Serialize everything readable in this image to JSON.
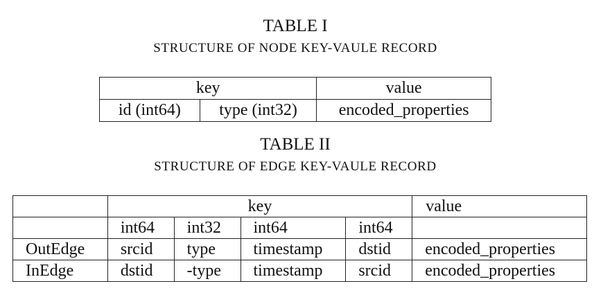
{
  "table1": {
    "title": "TABLE I",
    "subtitle": "STRUCTURE OF NODE KEY-VAULE RECORD",
    "header": {
      "key": "key",
      "value": "value"
    },
    "row": [
      "id (int64)",
      "type (int32)",
      "encoded_properties"
    ]
  },
  "table2": {
    "title": "TABLE II",
    "subtitle": "STRUCTURE OF EDGE KEY-VAULE RECORD",
    "header": {
      "key": "key",
      "value": "value"
    },
    "types": [
      "int64",
      "int32",
      "int64",
      "int64"
    ],
    "rows": [
      {
        "label": "OutEdge",
        "cells": [
          "srcid",
          "type",
          "timestamp",
          "dstid",
          "encoded_properties"
        ]
      },
      {
        "label": "InEdge",
        "cells": [
          "dstid",
          "-type",
          "timestamp",
          "srcid",
          "encoded_properties"
        ]
      }
    ]
  }
}
